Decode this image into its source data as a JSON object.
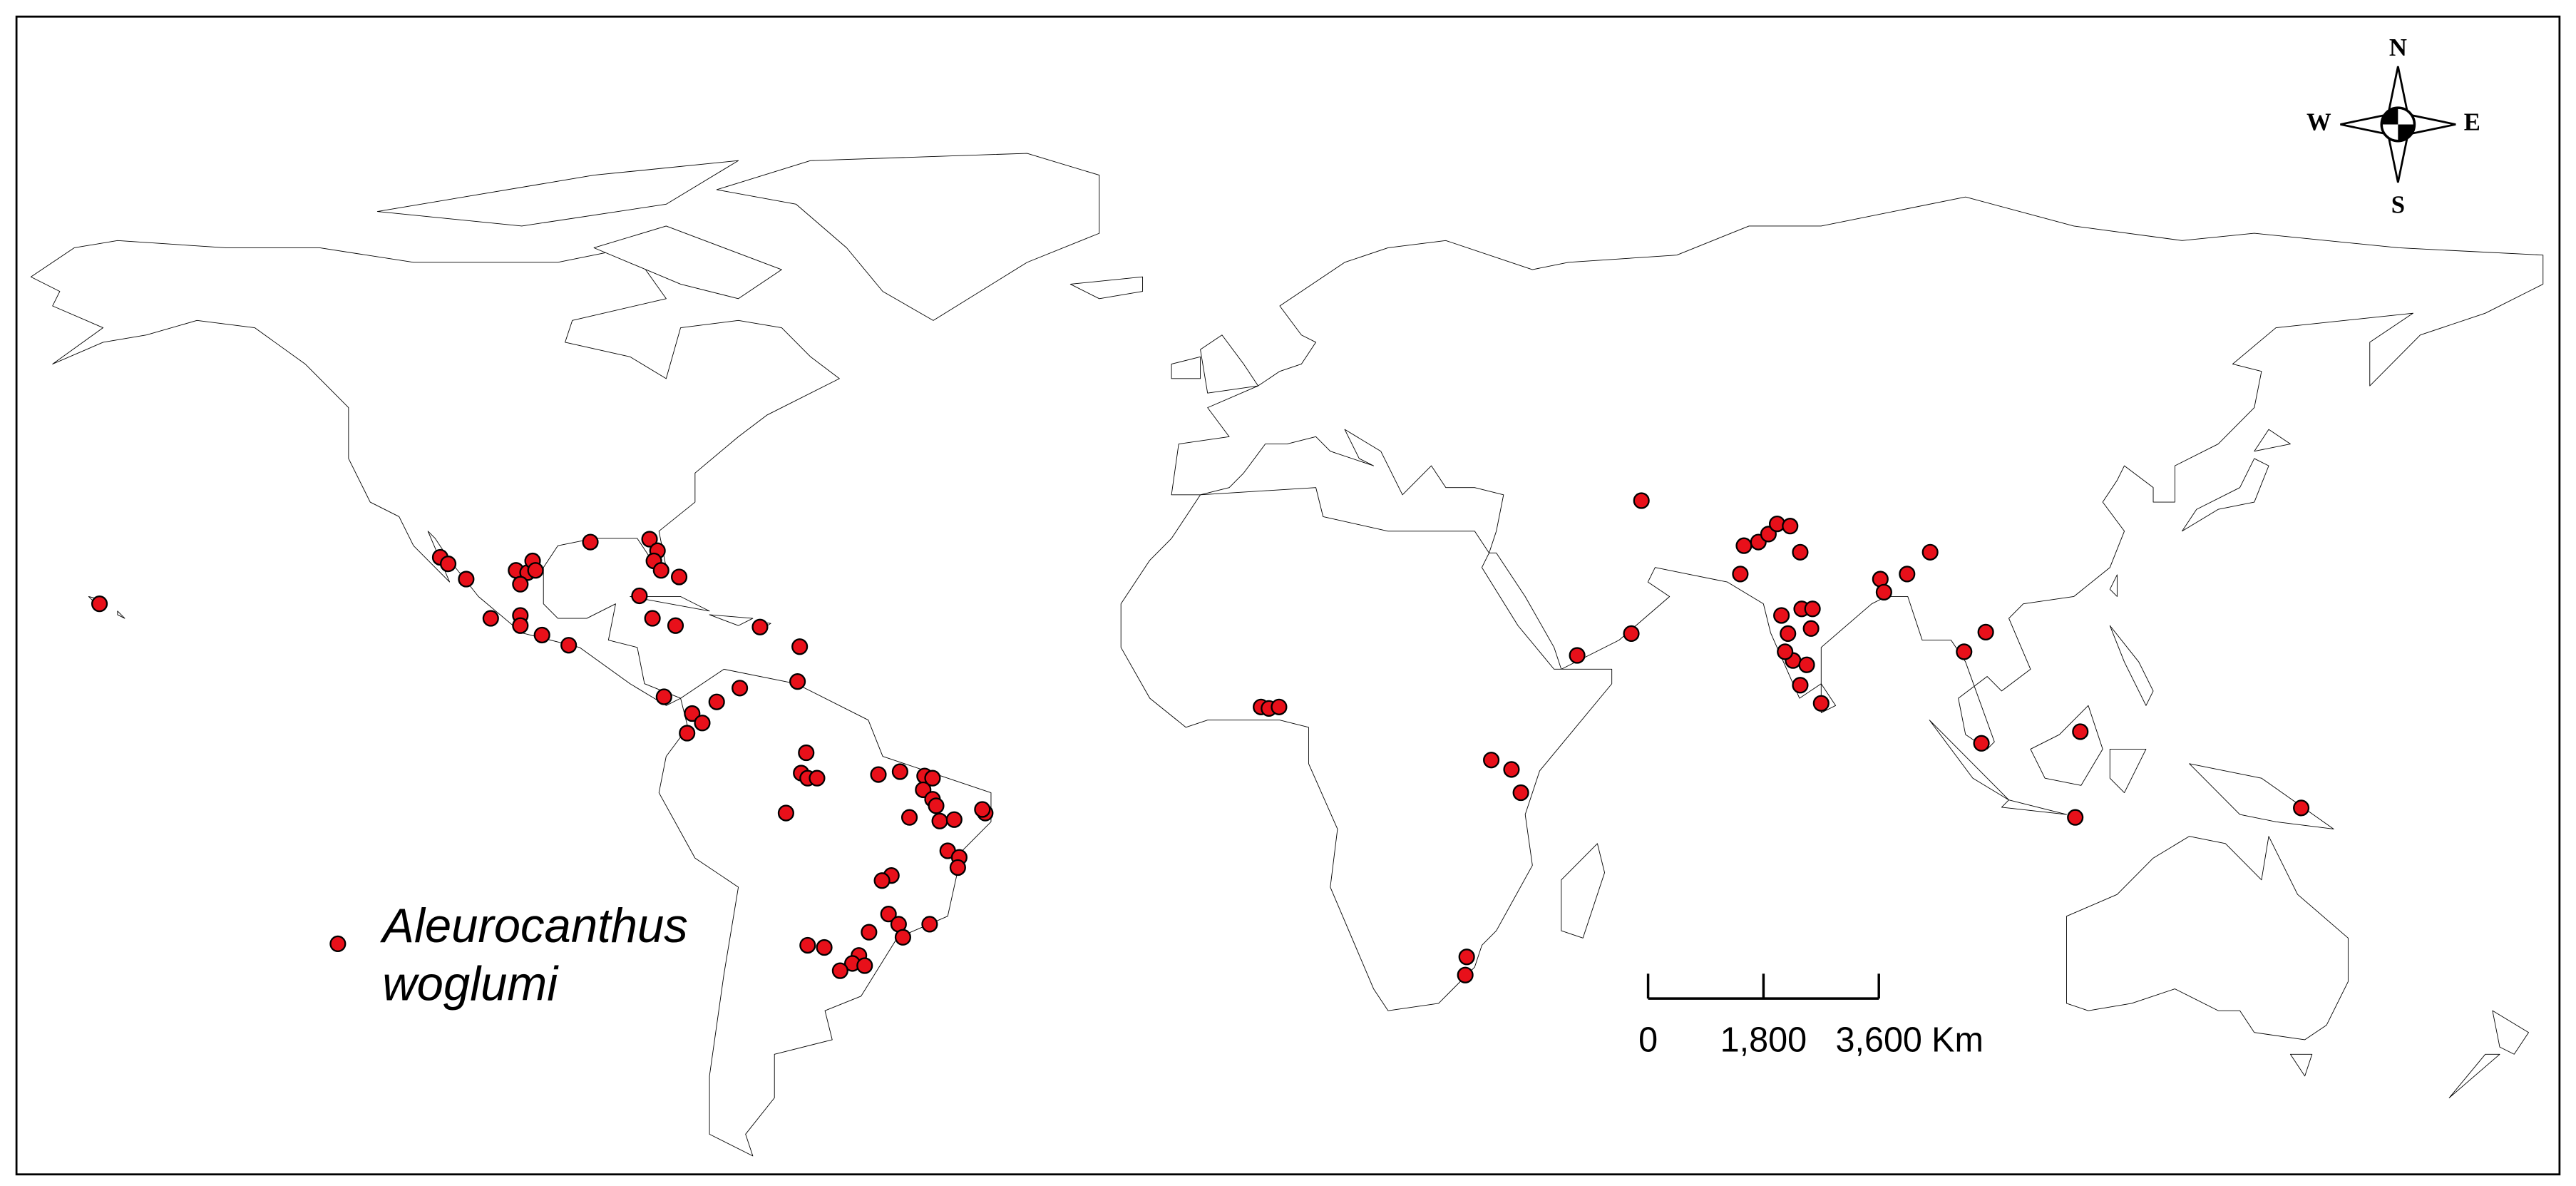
{
  "legend": {
    "lines": [
      "Aleurocanthus",
      "woglumi"
    ]
  },
  "compass": {
    "north": "N",
    "south": "S",
    "east": "E",
    "west": "W"
  },
  "scale_bar": {
    "ticks": [
      0,
      {
        "value": 1800,
        "label": "1,800"
      },
      {
        "value": 3600,
        "label": "3,600"
      }
    ],
    "unit": "Km"
  },
  "occurrences": [
    [
      -158.5,
      21.0
    ],
    [
      -111.3,
      27.4
    ],
    [
      -110.2,
      26.5
    ],
    [
      -107.7,
      24.4
    ],
    [
      -104.3,
      19.0
    ],
    [
      -100.2,
      19.4
    ],
    [
      -100.2,
      18.0
    ],
    [
      -100.8,
      25.6
    ],
    [
      -99.2,
      25.3
    ],
    [
      -98.5,
      26.9
    ],
    [
      -98.1,
      25.6
    ],
    [
      -100.2,
      23.7
    ],
    [
      -97.2,
      16.7
    ],
    [
      -93.5,
      15.3
    ],
    [
      -90.5,
      29.5
    ],
    [
      -83.7,
      22.1
    ],
    [
      -82.3,
      29.9
    ],
    [
      -81.2,
      28.3
    ],
    [
      -81.7,
      26.9
    ],
    [
      -80.7,
      25.6
    ],
    [
      -78.2,
      24.7
    ],
    [
      -81.9,
      19.0
    ],
    [
      -78.7,
      18.0
    ],
    [
      -67.0,
      17.8
    ],
    [
      -61.5,
      15.1
    ],
    [
      -61.8,
      10.3
    ],
    [
      -80.3,
      8.2
    ],
    [
      -73.0,
      7.5
    ],
    [
      -69.8,
      9.4
    ],
    [
      -76.4,
      5.9
    ],
    [
      -75.0,
      4.6
    ],
    [
      -77.1,
      3.2
    ],
    [
      -60.6,
      0.5
    ],
    [
      -61.3,
      -2.3
    ],
    [
      -60.4,
      -3.0
    ],
    [
      -59.1,
      -3.0
    ],
    [
      -63.4,
      -7.8
    ],
    [
      -50.6,
      -2.5
    ],
    [
      -47.6,
      -2.1
    ],
    [
      -44.2,
      -2.7
    ],
    [
      -43.1,
      -3.0
    ],
    [
      -44.4,
      -4.6
    ],
    [
      -43.1,
      -5.9
    ],
    [
      -42.6,
      -6.8
    ],
    [
      -46.3,
      -8.4
    ],
    [
      -42.1,
      -8.9
    ],
    [
      -40.1,
      -8.7
    ],
    [
      -35.8,
      -7.8
    ],
    [
      -36.2,
      -7.3
    ],
    [
      -41.0,
      -13.0
    ],
    [
      -39.4,
      -13.9
    ],
    [
      -39.6,
      -15.3
    ],
    [
      -48.8,
      -16.4
    ],
    [
      -50.1,
      -17.1
    ],
    [
      -49.2,
      -21.7
    ],
    [
      -47.8,
      -23.1
    ],
    [
      -47.2,
      -24.9
    ],
    [
      -43.5,
      -23.1
    ],
    [
      -51.9,
      -24.2
    ],
    [
      -53.3,
      -27.4
    ],
    [
      -54.2,
      -28.5
    ],
    [
      -55.9,
      -29.5
    ],
    [
      -52.5,
      -28.8
    ],
    [
      -60.4,
      -26.0
    ],
    [
      -58.1,
      -26.3
    ],
    [
      2.4,
      6.8
    ],
    [
      3.5,
      6.6
    ],
    [
      4.9,
      6.8
    ],
    [
      34.3,
      -0.5
    ],
    [
      37.1,
      -1.8
    ],
    [
      38.4,
      -5.0
    ],
    [
      30.9,
      -27.6
    ],
    [
      30.7,
      -30.1
    ],
    [
      55.1,
      35.2
    ],
    [
      46.2,
      13.9
    ],
    [
      53.7,
      16.9
    ],
    [
      69.3,
      29.0
    ],
    [
      71.3,
      29.5
    ],
    [
      72.7,
      30.6
    ],
    [
      73.9,
      32.0
    ],
    [
      75.7,
      31.7
    ],
    [
      77.1,
      28.1
    ],
    [
      68.8,
      25.1
    ],
    [
      74.5,
      19.4
    ],
    [
      75.4,
      16.9
    ],
    [
      77.3,
      20.3
    ],
    [
      78.8,
      20.3
    ],
    [
      78.6,
      17.6
    ],
    [
      76.1,
      13.2
    ],
    [
      75.0,
      14.4
    ],
    [
      78.0,
      12.6
    ],
    [
      77.1,
      9.8
    ],
    [
      80.0,
      7.3
    ],
    [
      88.2,
      24.4
    ],
    [
      88.7,
      22.6
    ],
    [
      91.9,
      25.1
    ],
    [
      95.1,
      28.1
    ],
    [
      99.8,
      14.4
    ],
    [
      102.8,
      17.1
    ],
    [
      102.2,
      1.8
    ],
    [
      115.9,
      3.4
    ],
    [
      115.2,
      -8.4
    ],
    [
      146.5,
      -7.1
    ]
  ]
}
